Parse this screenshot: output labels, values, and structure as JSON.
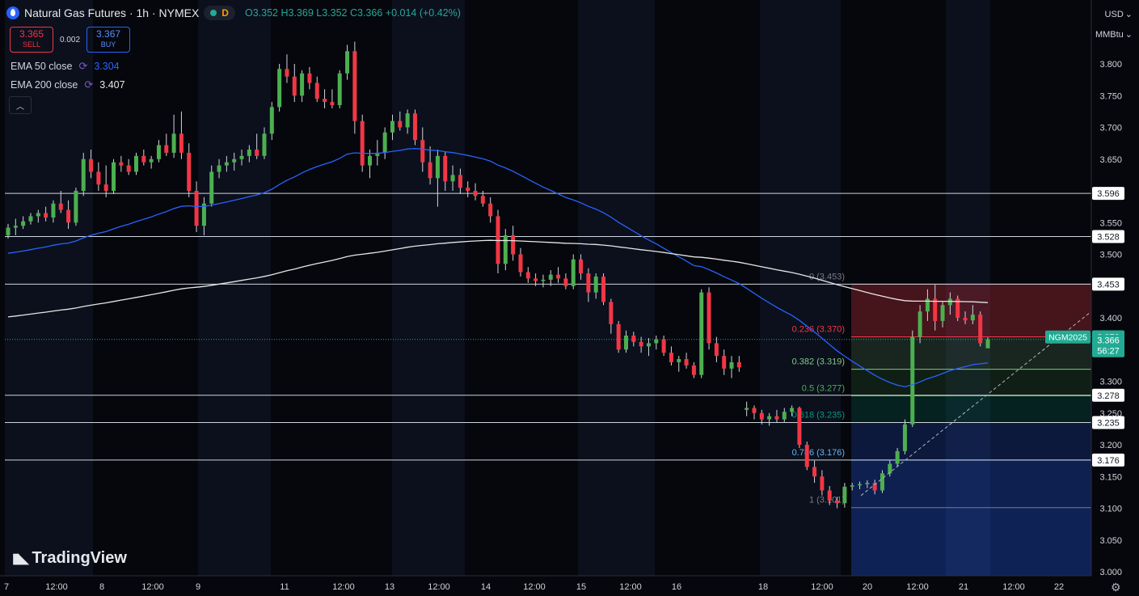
{
  "header": {
    "title": "Natural Gas Futures · 1h · NYMEX",
    "status_letter": "D",
    "open": "O3.352",
    "high": "H3.369",
    "low": "L3.352",
    "close": "C3.366",
    "change": "+0.014 (+0.42%)"
  },
  "trade": {
    "sell_price": "3.365",
    "sell_label": "SELL",
    "spread": "0.002",
    "buy_price": "3.367",
    "buy_label": "BUY"
  },
  "indicators": [
    {
      "name": "EMA 50 close",
      "value": "3.304",
      "color": "#2962ff"
    },
    {
      "name": "EMA 200 close",
      "value": "3.407",
      "color": "#e6e6e6"
    }
  ],
  "currency": "USD",
  "unit": "MMBtu",
  "branding": "TradingView",
  "colors": {
    "up": "#26a69a",
    "up_body": "#4caf50",
    "down": "#f23645",
    "background": "#05070c"
  },
  "chart_data": {
    "type": "candlestick",
    "symbol": "NGM2025",
    "ylim": [
      3.0,
      3.85
    ],
    "y_ticks": [
      "3.000",
      "3.050",
      "3.100",
      "3.150",
      "3.200",
      "3.250",
      "3.300",
      "3.350",
      "3.400",
      "3.450",
      "3.500",
      "3.550",
      "3.600",
      "3.650",
      "3.700",
      "3.750",
      "3.800"
    ],
    "x_ticks": [
      "7",
      "12:00",
      "8",
      "12:00",
      "9",
      "11",
      "12:00",
      "13",
      "12:00",
      "14",
      "12:00",
      "15",
      "12:00",
      "16",
      "18",
      "12:00",
      "20",
      "12:00",
      "21",
      "12:00",
      "22"
    ],
    "horizontal_levels": [
      3.596,
      3.528,
      3.453,
      3.278,
      3.235,
      3.176
    ],
    "fibonacci": [
      {
        "label": "0 (3.453)",
        "ratio": 0,
        "value": 3.453,
        "color": "#787b86"
      },
      {
        "label": "0.236 (3.370)",
        "ratio": 0.236,
        "value": 3.37,
        "color": "#f23645"
      },
      {
        "label": "0.382 (3.319)",
        "ratio": 0.382,
        "value": 3.319,
        "color": "#81c784"
      },
      {
        "label": "0.5 (3.277)",
        "ratio": 0.5,
        "value": 3.277,
        "color": "#4caf50"
      },
      {
        "label": "0.618 (3.235)",
        "ratio": 0.618,
        "value": 3.235,
        "color": "#089981"
      },
      {
        "label": "0.786 (3.176)",
        "ratio": 0.786,
        "value": 3.176,
        "color": "#64b5f6"
      },
      {
        "label": "1 (3.101)",
        "ratio": 1,
        "value": 3.101,
        "color": "#787b86"
      }
    ],
    "price_labels": [
      {
        "text": "3.596",
        "value": 3.596,
        "bg": "#ffffff",
        "fg": "#131722"
      },
      {
        "text": "3.528",
        "value": 3.528,
        "bg": "#ffffff",
        "fg": "#131722"
      },
      {
        "text": "3.453",
        "value": 3.453,
        "bg": "#ffffff",
        "fg": "#131722"
      },
      {
        "text": "3.370",
        "value": 3.37,
        "bg": "#22ab94",
        "fg": "#ffffff"
      },
      {
        "text": "3.278",
        "value": 3.278,
        "bg": "#ffffff",
        "fg": "#131722"
      },
      {
        "text": "3.235",
        "value": 3.235,
        "bg": "#ffffff",
        "fg": "#131722"
      },
      {
        "text": "3.176",
        "value": 3.176,
        "bg": "#ffffff",
        "fg": "#131722"
      }
    ],
    "last_price": {
      "symbol": "NGM2025",
      "value": "3.366",
      "countdown": "56:27",
      "price": 3.366
    },
    "ema50_end": 3.304,
    "ema200_end": 3.407,
    "ohlc": [
      [
        3.53,
        3.548,
        3.525,
        3.542
      ],
      [
        3.542,
        3.556,
        3.53,
        3.545
      ],
      [
        3.545,
        3.56,
        3.54,
        3.552
      ],
      [
        3.552,
        3.565,
        3.547,
        3.56
      ],
      [
        3.56,
        3.57,
        3.55,
        3.565
      ],
      [
        3.565,
        3.575,
        3.552,
        3.558
      ],
      [
        3.558,
        3.585,
        3.55,
        3.58
      ],
      [
        3.58,
        3.6,
        3.565,
        3.57
      ],
      [
        3.57,
        3.585,
        3.54,
        3.55
      ],
      [
        3.55,
        3.605,
        3.545,
        3.6
      ],
      [
        3.6,
        3.66,
        3.592,
        3.65
      ],
      [
        3.65,
        3.665,
        3.62,
        3.63
      ],
      [
        3.63,
        3.645,
        3.6,
        3.61
      ],
      [
        3.61,
        3.64,
        3.59,
        3.6
      ],
      [
        3.6,
        3.65,
        3.595,
        3.645
      ],
      [
        3.645,
        3.655,
        3.63,
        3.64
      ],
      [
        3.64,
        3.65,
        3.625,
        3.63
      ],
      [
        3.63,
        3.66,
        3.625,
        3.655
      ],
      [
        3.655,
        3.665,
        3.64,
        3.645
      ],
      [
        3.645,
        3.655,
        3.635,
        3.65
      ],
      [
        3.65,
        3.68,
        3.645,
        3.672
      ],
      [
        3.672,
        3.69,
        3.655,
        3.66
      ],
      [
        3.66,
        3.72,
        3.652,
        3.69
      ],
      [
        3.69,
        3.725,
        3.65,
        3.66
      ],
      [
        3.66,
        3.675,
        3.59,
        3.6
      ],
      [
        3.6,
        3.615,
        3.535,
        3.545
      ],
      [
        3.545,
        3.59,
        3.53,
        3.58
      ],
      [
        3.58,
        3.64,
        3.575,
        3.63
      ],
      [
        3.63,
        3.65,
        3.62,
        3.64
      ],
      [
        3.64,
        3.655,
        3.63,
        3.645
      ],
      [
        3.645,
        3.66,
        3.632,
        3.65
      ],
      [
        3.65,
        3.665,
        3.64,
        3.655
      ],
      [
        3.655,
        3.672,
        3.645,
        3.665
      ],
      [
        3.665,
        3.69,
        3.65,
        3.655
      ],
      [
        3.655,
        3.7,
        3.65,
        3.69
      ],
      [
        3.69,
        3.74,
        3.68,
        3.732
      ],
      [
        3.732,
        3.8,
        3.725,
        3.792
      ],
      [
        3.792,
        3.815,
        3.77,
        3.78
      ],
      [
        3.78,
        3.8,
        3.74,
        3.75
      ],
      [
        3.75,
        3.79,
        3.74,
        3.785
      ],
      [
        3.785,
        3.795,
        3.76,
        3.77
      ],
      [
        3.77,
        3.78,
        3.74,
        3.745
      ],
      [
        3.745,
        3.76,
        3.73,
        3.74
      ],
      [
        3.74,
        3.76,
        3.73,
        3.735
      ],
      [
        3.735,
        3.79,
        3.73,
        3.785
      ],
      [
        3.785,
        3.83,
        3.775,
        3.82
      ],
      [
        3.82,
        3.835,
        3.69,
        3.71
      ],
      [
        3.71,
        3.72,
        3.63,
        3.64
      ],
      [
        3.64,
        3.665,
        3.62,
        3.655
      ],
      [
        3.655,
        3.68,
        3.64,
        3.66
      ],
      [
        3.66,
        3.7,
        3.65,
        3.692
      ],
      [
        3.692,
        3.72,
        3.68,
        3.71
      ],
      [
        3.71,
        3.725,
        3.695,
        3.7
      ],
      [
        3.7,
        3.728,
        3.69,
        3.722
      ],
      [
        3.722,
        3.728,
        3.672,
        3.68
      ],
      [
        3.68,
        3.7,
        3.63,
        3.645
      ],
      [
        3.645,
        3.67,
        3.61,
        3.62
      ],
      [
        3.62,
        3.665,
        3.575,
        3.655
      ],
      [
        3.655,
        3.662,
        3.6,
        3.615
      ],
      [
        3.615,
        3.64,
        3.6,
        3.625
      ],
      [
        3.625,
        3.635,
        3.595,
        3.605
      ],
      [
        3.605,
        3.615,
        3.59,
        3.6
      ],
      [
        3.6,
        3.612,
        3.585,
        3.592
      ],
      [
        3.592,
        3.6,
        3.575,
        3.58
      ],
      [
        3.58,
        3.59,
        3.55,
        3.56
      ],
      [
        3.56,
        3.57,
        3.47,
        3.485
      ],
      [
        3.485,
        3.54,
        3.475,
        3.53
      ],
      [
        3.53,
        3.545,
        3.49,
        3.5
      ],
      [
        3.5,
        3.51,
        3.465,
        3.472
      ],
      [
        3.472,
        3.48,
        3.455,
        3.462
      ],
      [
        3.462,
        3.47,
        3.45,
        3.458
      ],
      [
        3.458,
        3.468,
        3.448,
        3.46
      ],
      [
        3.46,
        3.475,
        3.45,
        3.468
      ],
      [
        3.468,
        3.48,
        3.455,
        3.462
      ],
      [
        3.462,
        3.47,
        3.445,
        3.45
      ],
      [
        3.45,
        3.5,
        3.445,
        3.492
      ],
      [
        3.492,
        3.5,
        3.46,
        3.47
      ],
      [
        3.47,
        3.478,
        3.425,
        3.44
      ],
      [
        3.44,
        3.47,
        3.43,
        3.465
      ],
      [
        3.465,
        3.47,
        3.42,
        3.425
      ],
      [
        3.425,
        3.43,
        3.375,
        3.39
      ],
      [
        3.39,
        3.395,
        3.345,
        3.35
      ],
      [
        3.35,
        3.38,
        3.345,
        3.372
      ],
      [
        3.372,
        3.378,
        3.355,
        3.362
      ],
      [
        3.362,
        3.37,
        3.345,
        3.355
      ],
      [
        3.355,
        3.368,
        3.34,
        3.36
      ],
      [
        3.36,
        3.372,
        3.35,
        3.366
      ],
      [
        3.366,
        3.372,
        3.34,
        3.345
      ],
      [
        3.345,
        3.355,
        3.325,
        3.33
      ],
      [
        3.33,
        3.34,
        3.315,
        3.335
      ],
      [
        3.335,
        3.345,
        3.32,
        3.325
      ],
      [
        3.325,
        3.33,
        3.305,
        3.31
      ],
      [
        3.31,
        3.445,
        3.305,
        3.44
      ],
      [
        3.44,
        3.448,
        3.35,
        3.36
      ],
      [
        3.36,
        3.37,
        3.33,
        3.34
      ],
      [
        3.34,
        3.35,
        3.31,
        3.32
      ],
      [
        3.32,
        3.34,
        3.305,
        3.33
      ],
      [
        3.33,
        3.34,
        3.315,
        3.322
      ],
      [
        3.255,
        3.268,
        3.245,
        3.258
      ],
      [
        3.258,
        3.262,
        3.24,
        3.25
      ],
      [
        3.25,
        3.255,
        3.232,
        3.24
      ],
      [
        3.24,
        3.25,
        3.23,
        3.245
      ],
      [
        3.245,
        3.255,
        3.235,
        3.24
      ],
      [
        3.24,
        3.258,
        3.236,
        3.252
      ],
      [
        3.252,
        3.262,
        3.245,
        3.258
      ],
      [
        3.258,
        3.26,
        3.195,
        3.2
      ],
      [
        3.2,
        3.205,
        3.16,
        3.165
      ],
      [
        3.165,
        3.175,
        3.14,
        3.15
      ],
      [
        3.15,
        3.16,
        3.12,
        3.128
      ],
      [
        3.128,
        3.135,
        3.105,
        3.112
      ],
      [
        3.112,
        3.118,
        3.1,
        3.108
      ],
      [
        3.108,
        3.14,
        3.101,
        3.134
      ],
      [
        3.134,
        3.14,
        3.128,
        3.136
      ],
      [
        3.136,
        3.142,
        3.13,
        3.138
      ],
      [
        3.138,
        3.144,
        3.132,
        3.14
      ],
      [
        3.14,
        3.145,
        3.122,
        3.128
      ],
      [
        3.128,
        3.16,
        3.124,
        3.155
      ],
      [
        3.155,
        3.175,
        3.15,
        3.17
      ],
      [
        3.17,
        3.195,
        3.165,
        3.19
      ],
      [
        3.19,
        3.24,
        3.185,
        3.232
      ],
      [
        3.232,
        3.38,
        3.228,
        3.37
      ],
      [
        3.37,
        3.42,
        3.36,
        3.41
      ],
      [
        3.41,
        3.445,
        3.395,
        3.43
      ],
      [
        3.43,
        3.452,
        3.38,
        3.395
      ],
      [
        3.395,
        3.425,
        3.385,
        3.42
      ],
      [
        3.42,
        3.44,
        3.405,
        3.43
      ],
      [
        3.43,
        3.435,
        3.395,
        3.4
      ],
      [
        3.4,
        3.41,
        3.39,
        3.396
      ],
      [
        3.396,
        3.42,
        3.39,
        3.405
      ],
      [
        3.405,
        3.41,
        3.355,
        3.36
      ],
      [
        3.352,
        3.369,
        3.352,
        3.366
      ]
    ]
  }
}
